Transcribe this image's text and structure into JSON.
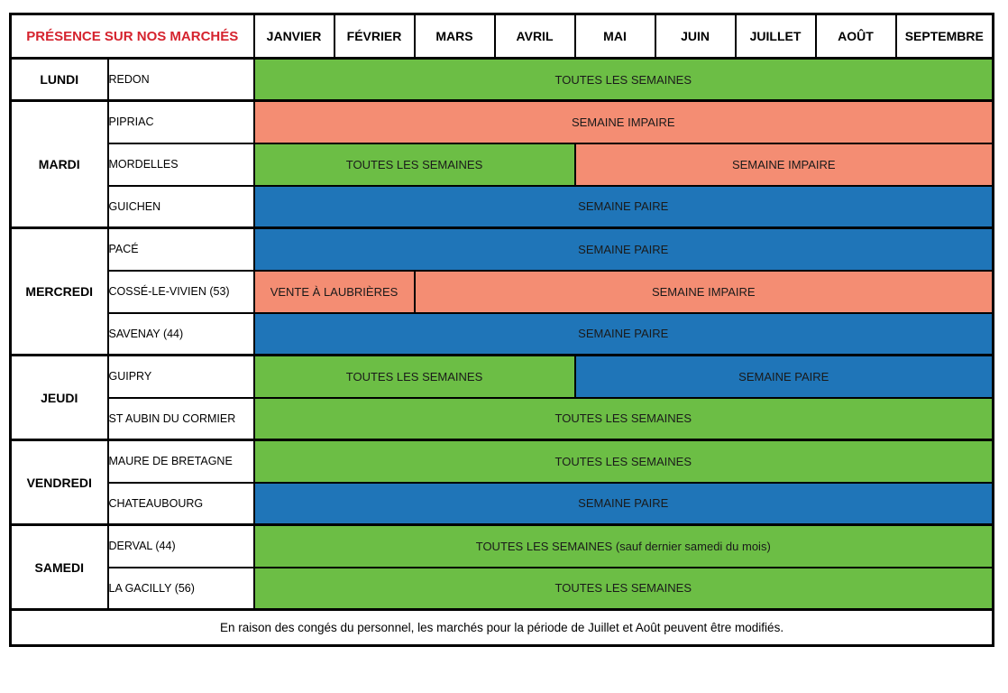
{
  "title": "PRÉSENCE SUR NOS MARCHÉS",
  "months": [
    "JANVIER",
    "FÉVRIER",
    "MARS",
    "AVRIL",
    "MAI",
    "JUIN",
    "JUILLET",
    "AOÛT",
    "SEPTEMBRE"
  ],
  "colors": {
    "green": "#6CBE45",
    "salmon": "#F48D73",
    "blue": "#1F75B8",
    "title_red": "#D5232E",
    "border": "#000000",
    "text": "#000000"
  },
  "days": [
    {
      "day": "LUNDI",
      "rows": [
        {
          "location": "REDON",
          "blocks": [
            {
              "label": "TOUTES LES SEMAINES",
              "color": "green",
              "span": 9
            }
          ]
        }
      ]
    },
    {
      "day": "MARDI",
      "rows": [
        {
          "location": "PIPRIAC",
          "blocks": [
            {
              "label": "SEMAINE IMPAIRE",
              "color": "salmon",
              "span": 9
            }
          ]
        },
        {
          "location": "MORDELLES",
          "blocks": [
            {
              "label": "TOUTES LES SEMAINES",
              "color": "green",
              "span": 4
            },
            {
              "label": "SEMAINE IMPAIRE",
              "color": "salmon",
              "span": 5
            }
          ]
        },
        {
          "location": "GUICHEN",
          "blocks": [
            {
              "label": "SEMAINE PAIRE",
              "color": "blue",
              "span": 9
            }
          ]
        }
      ]
    },
    {
      "day": "MERCREDI",
      "rows": [
        {
          "location": "PACÉ",
          "blocks": [
            {
              "label": "SEMAINE PAIRE",
              "color": "blue",
              "span": 9
            }
          ]
        },
        {
          "location": "COSSÉ-LE-VIVIEN (53)",
          "blocks": [
            {
              "label": "VENTE À LAUBRIÈRES",
              "color": "salmon",
              "span": 2
            },
            {
              "label": "SEMAINE IMPAIRE",
              "color": "salmon",
              "span": 7
            }
          ]
        },
        {
          "location": "SAVENAY (44)",
          "blocks": [
            {
              "label": "SEMAINE PAIRE",
              "color": "blue",
              "span": 9
            }
          ]
        }
      ]
    },
    {
      "day": "JEUDI",
      "rows": [
        {
          "location": "GUIPRY",
          "blocks": [
            {
              "label": "TOUTES LES SEMAINES",
              "color": "green",
              "span": 4
            },
            {
              "label": "SEMAINE PAIRE",
              "color": "blue",
              "span": 5
            }
          ]
        },
        {
          "location": "ST AUBIN DU CORMIER",
          "blocks": [
            {
              "label": "TOUTES LES SEMAINES",
              "color": "green",
              "span": 9
            }
          ]
        }
      ]
    },
    {
      "day": "VENDREDI",
      "rows": [
        {
          "location": "MAURE DE BRETAGNE",
          "blocks": [
            {
              "label": "TOUTES LES SEMAINES",
              "color": "green",
              "span": 9
            }
          ]
        },
        {
          "location": "CHATEAUBOURG",
          "blocks": [
            {
              "label": "SEMAINE PAIRE",
              "color": "blue",
              "span": 9
            }
          ]
        }
      ]
    },
    {
      "day": "SAMEDI",
      "rows": [
        {
          "location": "DERVAL (44)",
          "blocks": [
            {
              "label": "TOUTES LES SEMAINES (sauf dernier samedi du mois)",
              "color": "green",
              "span": 9
            }
          ]
        },
        {
          "location": "LA GACILLY (56)",
          "blocks": [
            {
              "label": "TOUTES LES SEMAINES",
              "color": "green",
              "span": 9
            }
          ]
        }
      ]
    }
  ],
  "footer": "En raison des congés du personnel, les marchés pour la période de Juillet et Août peuvent être modifiés."
}
